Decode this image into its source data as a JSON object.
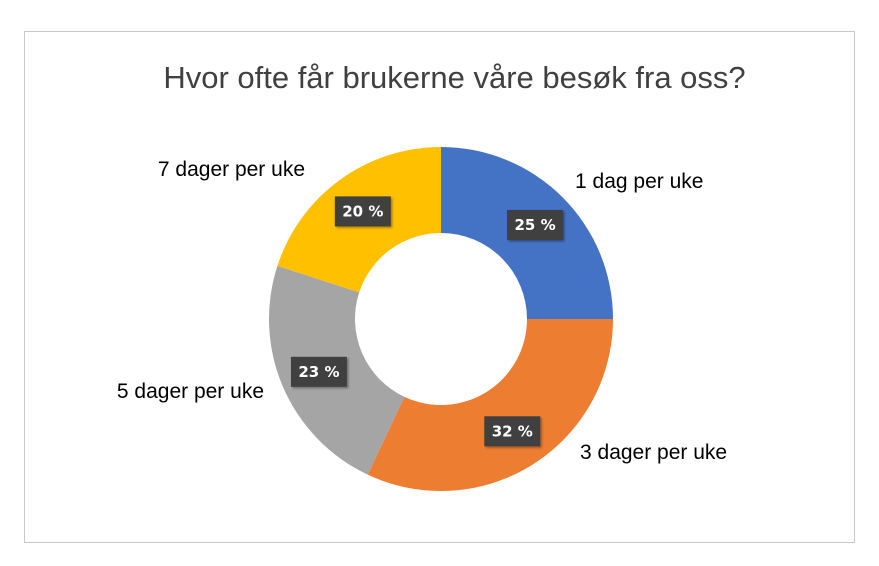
{
  "chart_data": {
    "type": "pie",
    "subtype": "donut",
    "title": "Hvor ofte får brukerne våre besøk fra oss?",
    "categories": [
      "1 dag per uke",
      "3 dager per uke",
      "5 dager per uke",
      "7 dager per uke"
    ],
    "values": [
      25,
      32,
      23,
      20
    ],
    "data_labels": [
      "25 %",
      "32 %",
      "23 %",
      "20 %"
    ],
    "colors": [
      "#4472C4",
      "#ED7D31",
      "#A5A5A5",
      "#FFC000"
    ],
    "label_box_color": "#404040",
    "legend": "none",
    "start_angle": "12 o'clock, clockwise"
  }
}
